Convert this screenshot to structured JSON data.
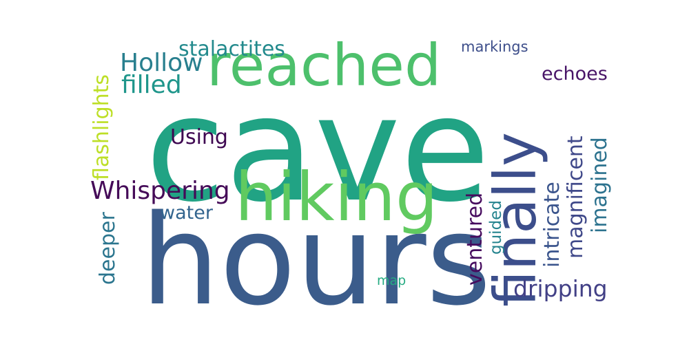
{
  "word_cloud": {
    "background": "#ffffff",
    "palette": "viridis",
    "words": [
      {
        "text": "cave",
        "color": "#21a384",
        "orientation": "horizontal"
      },
      {
        "text": "hours",
        "color": "#3b5c8b",
        "orientation": "horizontal"
      },
      {
        "text": "hiking",
        "color": "#60ca60",
        "orientation": "horizontal"
      },
      {
        "text": "reached",
        "color": "#4dc06c",
        "orientation": "horizontal"
      },
      {
        "text": "finally",
        "color": "#3c4e8b",
        "orientation": "vertical"
      },
      {
        "text": "Hollow",
        "color": "#287f8e",
        "orientation": "horizontal"
      },
      {
        "text": "filled",
        "color": "#1f968b",
        "orientation": "horizontal"
      },
      {
        "text": "stalactites",
        "color": "#238a8d",
        "orientation": "horizontal"
      },
      {
        "text": "markings",
        "color": "#3d4e8a",
        "orientation": "horizontal"
      },
      {
        "text": "echoes",
        "color": "#481467",
        "orientation": "horizontal"
      },
      {
        "text": "Using",
        "color": "#3e0751",
        "orientation": "horizontal"
      },
      {
        "text": "Whispering",
        "color": "#450b58",
        "orientation": "horizontal"
      },
      {
        "text": "water",
        "color": "#32648e",
        "orientation": "horizontal"
      },
      {
        "text": "map",
        "color": "#25ab82",
        "orientation": "horizontal"
      },
      {
        "text": "dripping",
        "color": "#424086",
        "orientation": "horizontal"
      },
      {
        "text": "flashlights",
        "color": "#bddf26",
        "orientation": "vertical"
      },
      {
        "text": "deeper",
        "color": "#2b758e",
        "orientation": "vertical"
      },
      {
        "text": "ventured",
        "color": "#460b5e",
        "orientation": "vertical"
      },
      {
        "text": "guided",
        "color": "#25848e",
        "orientation": "vertical"
      },
      {
        "text": "intricate",
        "color": "#3a548c",
        "orientation": "vertical"
      },
      {
        "text": "magnificent",
        "color": "#3f4889",
        "orientation": "vertical"
      },
      {
        "text": "imagined",
        "color": "#2c728e",
        "orientation": "vertical"
      }
    ]
  }
}
